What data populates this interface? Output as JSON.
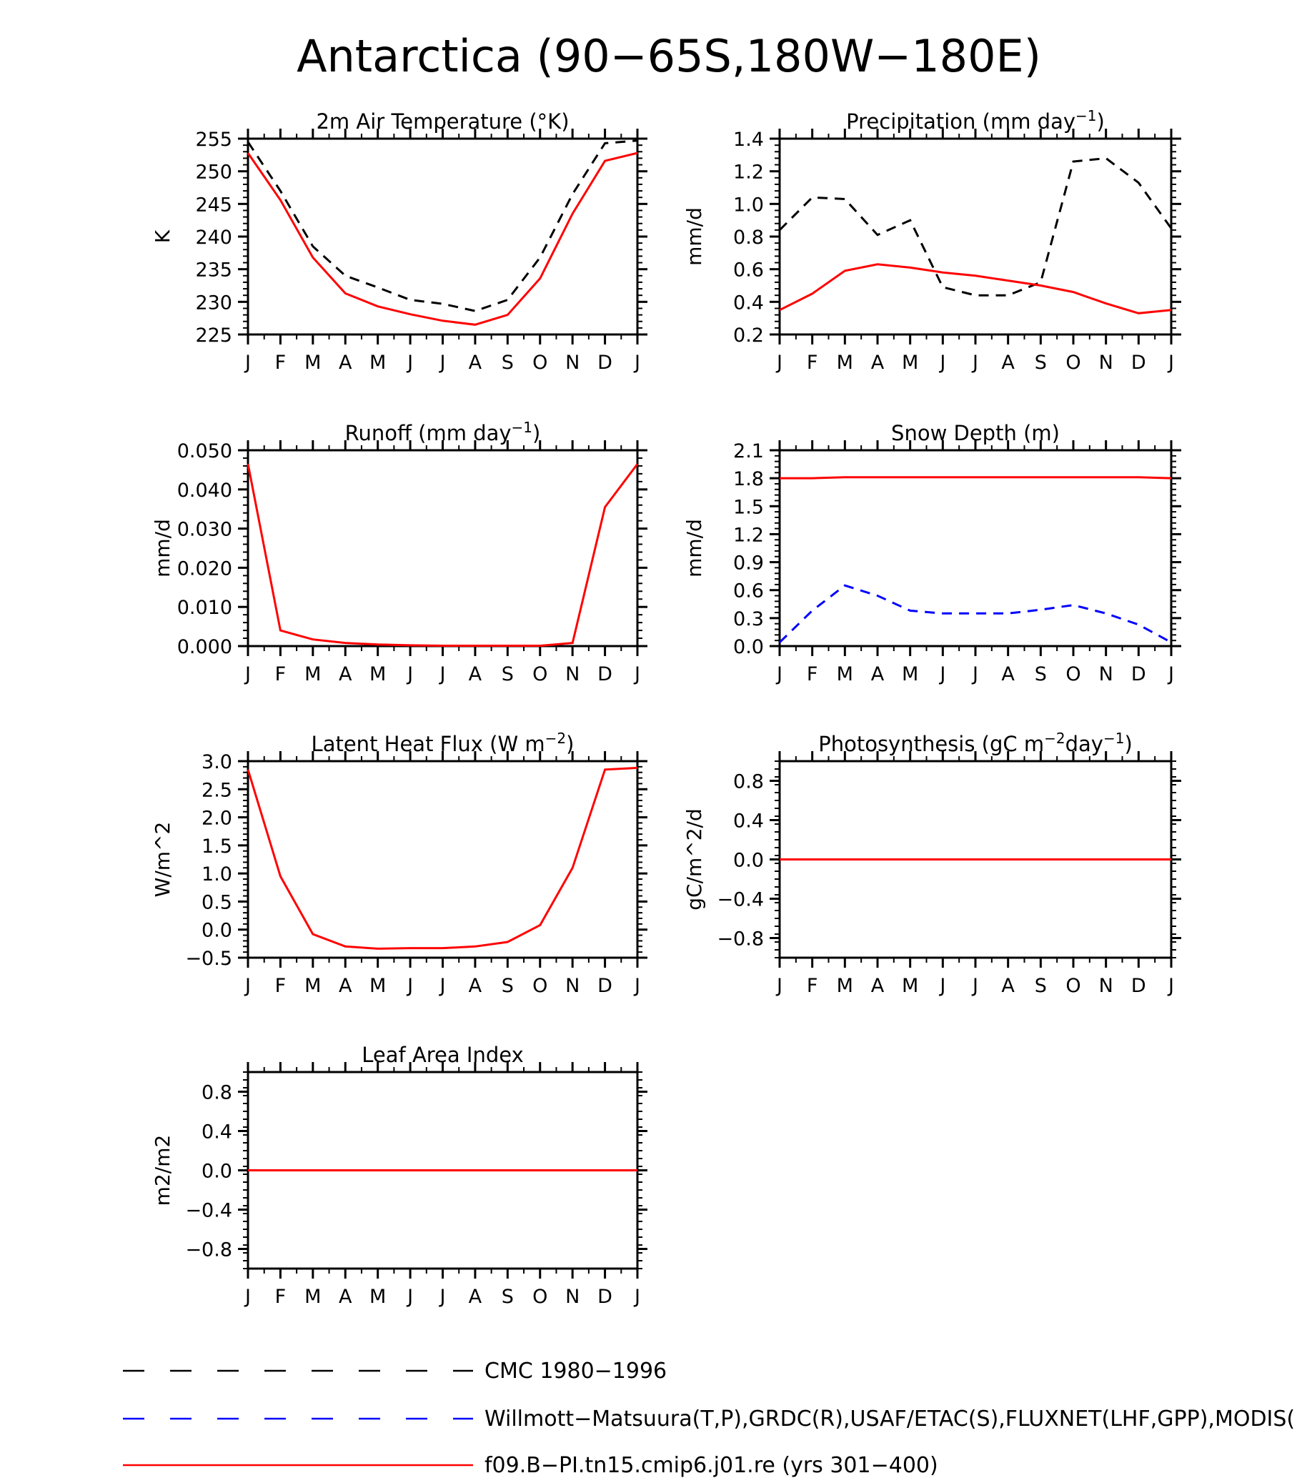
{
  "figure": {
    "title": "Antarctica (90−65S,180W−180E)"
  },
  "colors": {
    "obs1": "#000000",
    "obs2": "#0000ff",
    "model": "#ff0000"
  },
  "legend": {
    "entries": [
      {
        "label": "CMC 1980−1996",
        "color": "#000000",
        "style": "dashed"
      },
      {
        "label": "Willmott−Matsuura(T,P),GRDC(R),USAF/ETAC(S),FLUXNET(LHF,GPP),MODIS(",
        "color": "#0000ff",
        "style": "dashed"
      },
      {
        "label": "f09.B−PI.tn15.cmip6.j01.re (yrs 301−400)",
        "color": "#ff0000",
        "style": "solid"
      }
    ]
  },
  "chart_data": [
    {
      "type": "line",
      "title": "2m Air Temperature (°K)",
      "ylabel": "K",
      "categories": [
        "J",
        "F",
        "M",
        "A",
        "M",
        "J",
        "J",
        "A",
        "S",
        "O",
        "N",
        "D",
        "J"
      ],
      "ylim": [
        225,
        255
      ],
      "yticks": [
        "225",
        "230",
        "235",
        "240",
        "245",
        "250",
        "255"
      ],
      "series": [
        {
          "color": "#000000",
          "style": "dashed",
          "values": [
            254.5,
            247,
            238.5,
            234,
            232.2,
            230.3,
            229.7,
            228.6,
            230.3,
            236.8,
            246.5,
            254.3,
            254.7
          ]
        },
        {
          "color": "#ff0000",
          "style": "solid",
          "values": [
            252.8,
            245.6,
            236.8,
            231.3,
            229.3,
            228.1,
            227.1,
            226.5,
            228.0,
            233.6,
            243.5,
            251.6,
            252.8
          ]
        }
      ]
    },
    {
      "type": "line",
      "title": "Precipitation (mm day",
      "title_sup": "−1",
      "title_end": ")",
      "ylabel": "mm/d",
      "categories": [
        "J",
        "F",
        "M",
        "A",
        "M",
        "J",
        "J",
        "A",
        "S",
        "O",
        "N",
        "D",
        "J"
      ],
      "ylim": [
        0.2,
        1.4
      ],
      "yticks": [
        "0.2",
        "0.4",
        "0.6",
        "0.8",
        "1.0",
        "1.2",
        "1.4"
      ],
      "series": [
        {
          "color": "#000000",
          "style": "dashed",
          "values": [
            0.84,
            1.04,
            1.03,
            0.81,
            0.9,
            0.49,
            0.44,
            0.44,
            0.52,
            1.26,
            1.28,
            1.13,
            0.85
          ]
        },
        {
          "color": "#ff0000",
          "style": "solid",
          "values": [
            0.35,
            0.45,
            0.59,
            0.63,
            0.61,
            0.58,
            0.56,
            0.53,
            0.5,
            0.46,
            0.39,
            0.33,
            0.35
          ]
        }
      ]
    },
    {
      "type": "line",
      "title": "Runoff (mm day",
      "title_sup": "−1",
      "title_end": ")",
      "ylabel": "mm/d",
      "categories": [
        "J",
        "F",
        "M",
        "A",
        "M",
        "J",
        "J",
        "A",
        "S",
        "O",
        "N",
        "D",
        "J"
      ],
      "ylim": [
        0,
        0.05
      ],
      "yticks": [
        "0.000",
        "0.010",
        "0.020",
        "0.030",
        "0.040",
        "0.050"
      ],
      "series": [
        {
          "color": "#ff0000",
          "style": "solid",
          "values": [
            0.0465,
            0.004,
            0.0017,
            0.0008,
            0.0004,
            0.0002,
            0.0001,
            0.0001,
            0.0001,
            0.0001,
            0.0008,
            0.0355,
            0.0465
          ]
        }
      ]
    },
    {
      "type": "line",
      "title": "Snow Depth (m)",
      "ylabel": "mm/d",
      "categories": [
        "J",
        "F",
        "M",
        "A",
        "M",
        "J",
        "J",
        "A",
        "S",
        "O",
        "N",
        "D",
        "J"
      ],
      "ylim": [
        0,
        2.1
      ],
      "yticks": [
        "0.0",
        "0.3",
        "0.6",
        "0.9",
        "1.2",
        "1.5",
        "1.8",
        "2.1"
      ],
      "series": [
        {
          "color": "#ff0000",
          "style": "solid",
          "values": [
            1.8,
            1.8,
            1.81,
            1.81,
            1.81,
            1.81,
            1.81,
            1.81,
            1.81,
            1.81,
            1.81,
            1.81,
            1.8
          ]
        },
        {
          "color": "#0000ff",
          "style": "dashed",
          "values": [
            0.04,
            0.38,
            0.65,
            0.54,
            0.38,
            0.35,
            0.35,
            0.35,
            0.39,
            0.44,
            0.35,
            0.23,
            0.04
          ]
        },
        {
          "color": "#000000",
          "style": "dashed",
          "values": [
            0,
            0,
            0,
            0,
            0,
            0,
            0,
            0,
            0,
            0,
            0,
            0,
            0
          ]
        }
      ]
    },
    {
      "type": "line",
      "title": "Latent Heat Flux (W m",
      "title_sup": "−2",
      "title_end": ")",
      "ylabel": "W/m^2",
      "categories": [
        "J",
        "F",
        "M",
        "A",
        "M",
        "J",
        "J",
        "A",
        "S",
        "O",
        "N",
        "D",
        "J"
      ],
      "ylim": [
        -0.5,
        3.0
      ],
      "yticks": [
        "−0.5",
        "0.0",
        "0.5",
        "1.0",
        "1.5",
        "2.0",
        "2.5",
        "3.0"
      ],
      "series": [
        {
          "color": "#ff0000",
          "style": "solid",
          "values": [
            2.85,
            0.95,
            -0.08,
            -0.3,
            -0.34,
            -0.33,
            -0.33,
            -0.3,
            -0.22,
            0.08,
            1.1,
            2.85,
            2.88
          ]
        }
      ]
    },
    {
      "type": "line",
      "title": "Photosynthesis (gC m",
      "title_sup": "−2",
      "title_mid": "day",
      "title_sup2": "−1",
      "title_end": ")",
      "ylabel": "gC/m^2/d",
      "categories": [
        "J",
        "F",
        "M",
        "A",
        "M",
        "J",
        "J",
        "A",
        "S",
        "O",
        "N",
        "D",
        "J"
      ],
      "ylim": [
        -1.0,
        1.0
      ],
      "yticks": [
        "−0.8",
        "−0.4",
        "0.0",
        "0.4",
        "0.8"
      ],
      "ytick_values": [
        -0.8,
        -0.4,
        0.0,
        0.4,
        0.8
      ],
      "series": [
        {
          "color": "#ff0000",
          "style": "solid",
          "values": [
            0,
            0,
            0,
            0,
            0,
            0,
            0,
            0,
            0,
            0,
            0,
            0,
            0
          ]
        }
      ]
    },
    {
      "type": "line",
      "title": "Leaf Area Index",
      "ylabel": "m2/m2",
      "categories": [
        "J",
        "F",
        "M",
        "A",
        "M",
        "J",
        "J",
        "A",
        "S",
        "O",
        "N",
        "D",
        "J"
      ],
      "ylim": [
        -1.0,
        1.0
      ],
      "yticks": [
        "−0.8",
        "−0.4",
        "0.0",
        "0.4",
        "0.8"
      ],
      "ytick_values": [
        -0.8,
        -0.4,
        0.0,
        0.4,
        0.8
      ],
      "series": [
        {
          "color": "#ff0000",
          "style": "solid",
          "values": [
            0,
            0,
            0,
            0,
            0,
            0,
            0,
            0,
            0,
            0,
            0,
            0,
            0
          ]
        }
      ]
    }
  ]
}
